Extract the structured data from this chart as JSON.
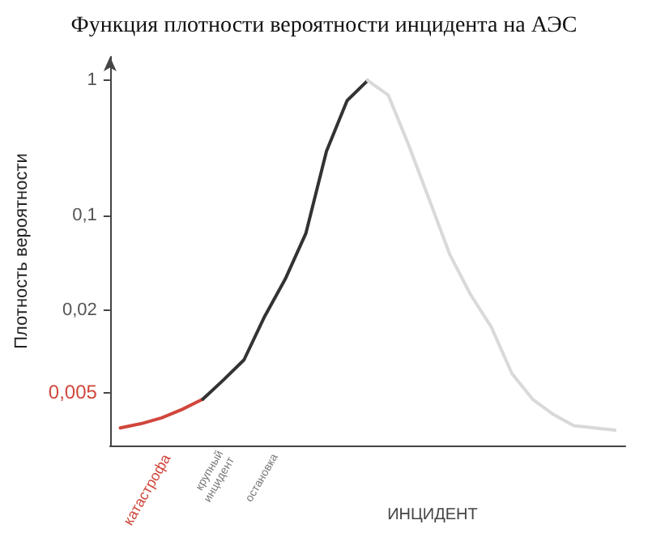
{
  "chart_data": {
    "type": "line",
    "title": "Функция плотности вероятности инцидента на АЭС",
    "xlabel": "ИНЦИДЕНТ",
    "ylabel": "Плотность вероятности",
    "log": "y",
    "ylim": [
      0.002,
      1.5
    ],
    "yticks": [
      {
        "value": 0.005,
        "label": "0,005"
      },
      {
        "value": 0.02,
        "label": "0,02"
      },
      {
        "value": 0.1,
        "label": "0,1"
      },
      {
        "value": 1,
        "label": "1"
      }
    ],
    "tick_labels": "y",
    "marker": "none",
    "line_style": "solid",
    "categories": [
      null,
      null,
      null,
      null,
      null,
      null,
      null,
      null,
      null,
      null,
      null,
      null,
      null,
      null,
      null,
      null,
      null,
      null,
      null,
      null,
      null,
      null,
      null,
      null,
      null
    ],
    "series": [
      {
        "color": "#d0463c",
        "values": [
          0.0027,
          0.0029,
          0.0032,
          0.0037,
          0.0044,
          null,
          null,
          null,
          null,
          null,
          null,
          null,
          null,
          null,
          null,
          null,
          null,
          null,
          null,
          null,
          null,
          null,
          null,
          null,
          null
        ]
      },
      {
        "color": "#333333",
        "values": [
          null,
          null,
          null,
          null,
          0.0044,
          0.0061,
          0.0086,
          0.018,
          0.034,
          0.074,
          0.3,
          0.71,
          1,
          null,
          null,
          null,
          null,
          null,
          null,
          null,
          null,
          null,
          null,
          null,
          null
        ]
      },
      {
        "color": "#d9d9d9",
        "values": [
          null,
          null,
          null,
          null,
          null,
          null,
          null,
          null,
          null,
          null,
          null,
          null,
          1,
          0.78,
          0.33,
          0.13,
          0.051,
          0.026,
          0.015,
          0.0068,
          0.0044,
          0.0034,
          0.0028,
          0.0027,
          0.0026
        ]
      }
    ],
    "annotations": [
      "катастрофа",
      "крупный инцидент",
      "остановка"
    ]
  }
}
